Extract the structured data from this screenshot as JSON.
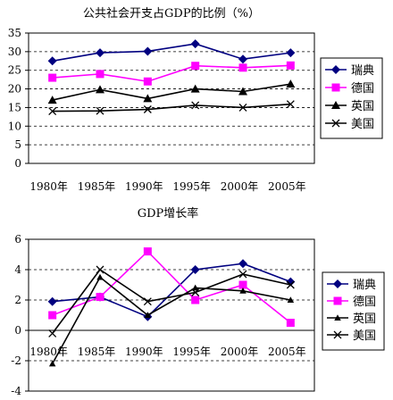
{
  "chart_data": [
    {
      "type": "line",
      "title": "公共社会开支占GDP的比例（%）",
      "categories": [
        "1980年",
        "1985年",
        "1990年",
        "1995年",
        "2000年",
        "2005年"
      ],
      "ylim": [
        0,
        35
      ],
      "yticks": [
        0,
        5,
        10,
        15,
        20,
        25,
        30,
        35
      ],
      "grid": "horizontal-dashed",
      "legend": "right",
      "series": [
        {
          "name": "瑞典",
          "marker": "diamond",
          "color": "#000080",
          "values": [
            27.5,
            29.7,
            30.1,
            32.1,
            28.0,
            29.7
          ]
        },
        {
          "name": "德国",
          "marker": "square",
          "color": "#ff00ff",
          "values": [
            23.0,
            24.0,
            22.0,
            26.2,
            25.7,
            26.3
          ]
        },
        {
          "name": "英国",
          "marker": "triangle",
          "color": "#000000",
          "values": [
            17.0,
            19.8,
            17.4,
            20.0,
            19.3,
            21.3
          ]
        },
        {
          "name": "美国",
          "marker": "x",
          "color": "#000000",
          "values": [
            14.0,
            14.1,
            14.5,
            15.6,
            15.0,
            15.9
          ]
        }
      ]
    },
    {
      "type": "line",
      "title": "GDP增长率",
      "categories": [
        "1980年",
        "1985年",
        "1990年",
        "1995年",
        "2000年",
        "2005年"
      ],
      "ylim": [
        -4,
        6
      ],
      "yticks": [
        -4,
        -2,
        0,
        2,
        4,
        6
      ],
      "grid": "horizontal-dashed",
      "legend": "right",
      "series": [
        {
          "name": "瑞典",
          "marker": "diamond",
          "color": "#000080",
          "values": [
            1.9,
            2.2,
            0.9,
            4.0,
            4.4,
            3.2
          ]
        },
        {
          "name": "德国",
          "marker": "square",
          "color": "#ff00ff",
          "values": [
            1.0,
            2.2,
            5.2,
            2.0,
            3.0,
            0.5
          ]
        },
        {
          "name": "英国",
          "marker": "triangle",
          "color": "#000000",
          "values": [
            -2.2,
            3.5,
            1.0,
            2.8,
            2.6,
            2.0
          ]
        },
        {
          "name": "美国",
          "marker": "x",
          "color": "#000000",
          "values": [
            -0.2,
            4.0,
            1.9,
            2.5,
            3.7,
            3.0
          ]
        }
      ]
    }
  ]
}
